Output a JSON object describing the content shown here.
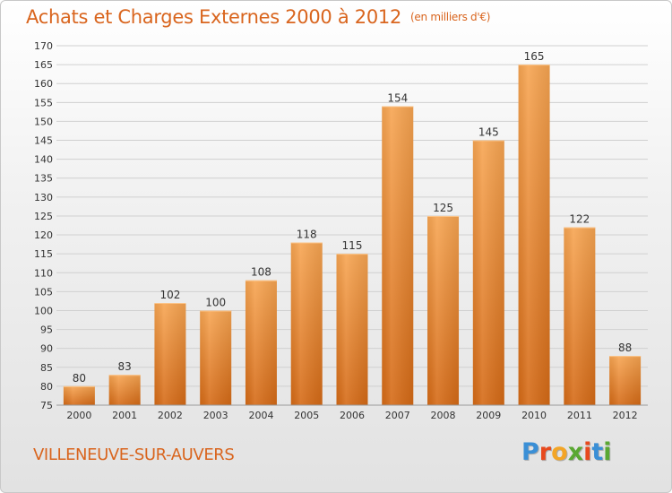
{
  "header": {
    "title": "Achats et Charges Externes 2000 à 2012",
    "unit": "(en milliers d'€)"
  },
  "footer": {
    "commune": "VILLENEUVE-SUR-AUVERS",
    "logo": "Proxiti",
    "logo_colors": [
      "#3a8fd6",
      "#e8491d",
      "#f3a526",
      "#5aa832",
      "#e8491d",
      "#3a8fd6",
      "#5aa832"
    ]
  },
  "colors": {
    "title": "#d9651e",
    "bar_top": "#f7a552",
    "bar_bottom": "#d56a16",
    "grid": "#d0d0d0",
    "axis_text": "#333333"
  },
  "chart_data": {
    "type": "bar",
    "categories": [
      "2000",
      "2001",
      "2002",
      "2003",
      "2004",
      "2005",
      "2006",
      "2007",
      "2008",
      "2009",
      "2010",
      "2011",
      "2012"
    ],
    "values": [
      80,
      83,
      102,
      100,
      108,
      118,
      115,
      154,
      125,
      145,
      165,
      122,
      88
    ],
    "title": "Achats et Charges Externes 2000 à 2012",
    "subtitle": "(en milliers d'€)",
    "xlabel": "",
    "ylabel": "",
    "ylim": [
      75,
      170
    ],
    "ytick_step": 5,
    "grid": true,
    "data_labels": true
  }
}
